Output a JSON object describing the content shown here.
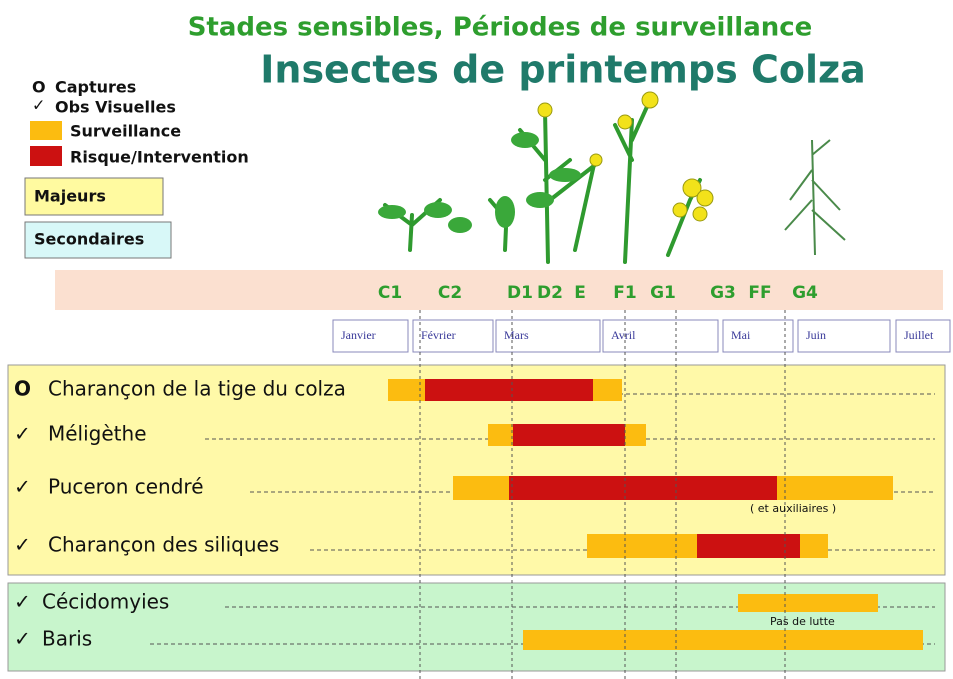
{
  "title": "Stades sensibles, Périodes de surveillance",
  "subtitle": "Insectes de printemps Colza",
  "legend": {
    "items": [
      {
        "symbol": "O",
        "label": "Captures"
      },
      {
        "symbol": "✓",
        "label": "Obs Visuelles"
      },
      {
        "label": "Surveillance"
      },
      {
        "label": "Risque/Intervention"
      }
    ],
    "groups": [
      "Majeurs",
      "Secondaires"
    ]
  },
  "stages": [
    "C1",
    "C2",
    "D1",
    "D2",
    "E",
    "F1",
    "G1",
    "G3",
    "FF",
    "G4"
  ],
  "months": [
    "Janvier",
    "Février",
    "Mars",
    "Avril",
    "Mai",
    "Juin",
    "Juillet"
  ],
  "major": [
    {
      "symbol": "O",
      "name": "Charançon de la tige du colza"
    },
    {
      "symbol": "✓",
      "name": "Méligèthe"
    },
    {
      "symbol": "✓",
      "name": "Puceron cendré"
    },
    {
      "symbol": "✓",
      "name": "Charançon des siliques"
    }
  ],
  "minor": [
    {
      "symbol": "✓",
      "name": "Cécidomyies"
    },
    {
      "symbol": "✓",
      "name": "Baris"
    }
  ],
  "notes": [
    "( et auxiliaires )",
    "Pas de lutte"
  ]
}
